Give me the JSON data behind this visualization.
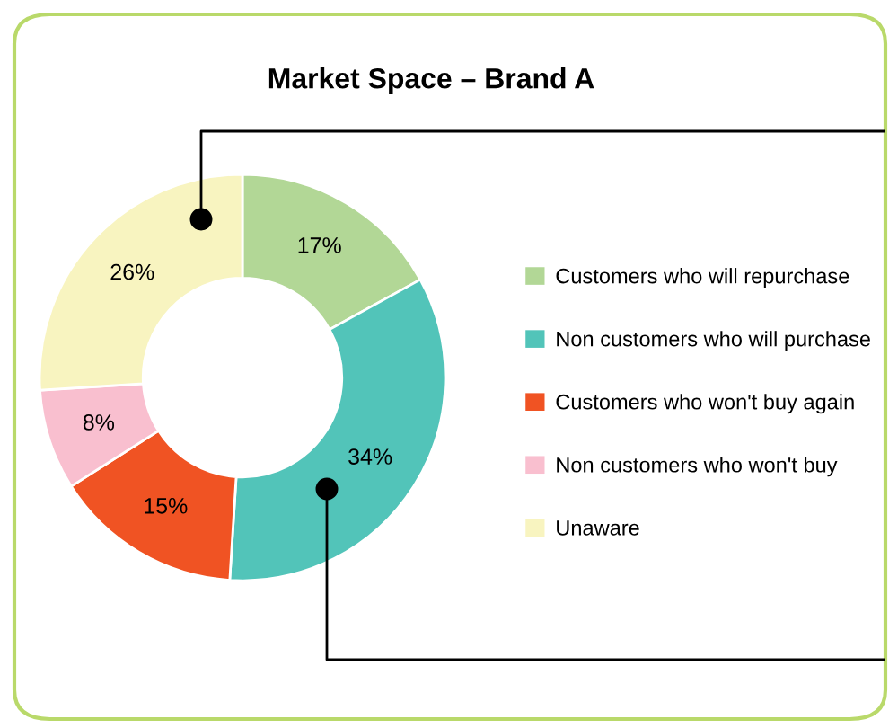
{
  "chart_data": {
    "type": "donut",
    "title": "Market Space – Brand A",
    "categories": [
      "Customers who will repurchase",
      "Non customers who will purchase",
      "Customers who won't buy again",
      "Non customers who won't buy",
      "Unaware"
    ],
    "values": [
      17,
      34,
      15,
      8,
      26
    ],
    "colors": [
      "#b2d796",
      "#52c4b9",
      "#f05323",
      "#f9bfcf",
      "#f8f4c0"
    ],
    "value_labels": [
      "17%",
      "34%",
      "15%",
      "8%",
      "26%"
    ],
    "legend": "right"
  }
}
